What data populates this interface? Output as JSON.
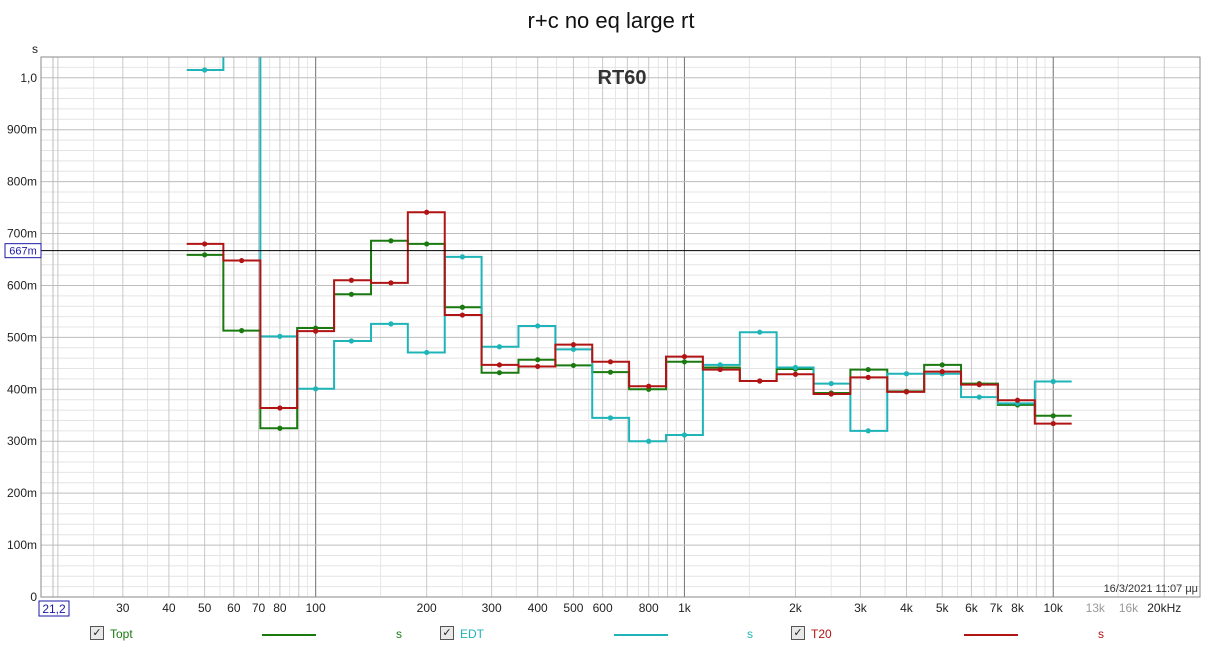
{
  "chart_data": {
    "type": "line",
    "title": "r+c no eq large rt",
    "annotation": "RT60",
    "timestamp": "16/3/2021 11:07 μμ",
    "y_unit": "s",
    "cursor_value": "667m",
    "cursor_x_value": "21,2",
    "ylim": [
      0,
      1.04
    ],
    "xlim": [
      18,
      25000
    ],
    "x_scale": "log",
    "grid": true,
    "y_ticks": [
      {
        "v": 0,
        "label": "0"
      },
      {
        "v": 0.1,
        "label": "100m"
      },
      {
        "v": 0.2,
        "label": "200m"
      },
      {
        "v": 0.3,
        "label": "300m"
      },
      {
        "v": 0.4,
        "label": "400m"
      },
      {
        "v": 0.5,
        "label": "500m"
      },
      {
        "v": 0.6,
        "label": "600m"
      },
      {
        "v": 0.7,
        "label": "700m"
      },
      {
        "v": 0.8,
        "label": "800m"
      },
      {
        "v": 0.9,
        "label": "900m"
      },
      {
        "v": 1.0,
        "label": "1,0"
      }
    ],
    "x_ticks": [
      {
        "v": 30,
        "label": "30",
        "dim": false
      },
      {
        "v": 40,
        "label": "40",
        "dim": false
      },
      {
        "v": 50,
        "label": "50",
        "dim": false
      },
      {
        "v": 60,
        "label": "60",
        "dim": false
      },
      {
        "v": 70,
        "label": "70",
        "dim": false
      },
      {
        "v": 80,
        "label": "80",
        "dim": false
      },
      {
        "v": 100,
        "label": "100",
        "dim": false
      },
      {
        "v": 200,
        "label": "200",
        "dim": false
      },
      {
        "v": 300,
        "label": "300",
        "dim": false
      },
      {
        "v": 400,
        "label": "400",
        "dim": false
      },
      {
        "v": 500,
        "label": "500",
        "dim": false
      },
      {
        "v": 600,
        "label": "600",
        "dim": false
      },
      {
        "v": 800,
        "label": "800",
        "dim": false
      },
      {
        "v": 1000,
        "label": "1k",
        "dim": false
      },
      {
        "v": 2000,
        "label": "2k",
        "dim": false
      },
      {
        "v": 3000,
        "label": "3k",
        "dim": false
      },
      {
        "v": 4000,
        "label": "4k",
        "dim": false
      },
      {
        "v": 5000,
        "label": "5k",
        "dim": false
      },
      {
        "v": 6000,
        "label": "6k",
        "dim": false
      },
      {
        "v": 7000,
        "label": "7k",
        "dim": false
      },
      {
        "v": 8000,
        "label": "8k",
        "dim": false
      },
      {
        "v": 10000,
        "label": "10k",
        "dim": false
      },
      {
        "v": 13000,
        "label": "13k",
        "dim": true
      },
      {
        "v": 16000,
        "label": "16k",
        "dim": true
      },
      {
        "v": 20000,
        "label": "20kHz",
        "dim": false
      }
    ],
    "bands": [
      50,
      63,
      80,
      100,
      125,
      160,
      200,
      250,
      315,
      400,
      500,
      630,
      800,
      1000,
      1250,
      1600,
      2000,
      2500,
      3150,
      4000,
      5000,
      6300,
      8000,
      10000
    ],
    "band_edges": [
      44.7,
      56.2,
      70.8,
      89.1,
      112.2,
      141.3,
      177.8,
      223.9,
      281.8,
      354.8,
      446.7,
      562.3,
      707.9,
      891.3,
      1122,
      1413,
      1778,
      2239,
      2818,
      3548,
      4467,
      5623,
      7079,
      8913,
      11220
    ],
    "series": [
      {
        "name": "Topt",
        "color": "#1a7a10",
        "values": [
          0.659,
          0.513,
          0.325,
          0.518,
          0.583,
          0.686,
          0.68,
          0.558,
          0.432,
          0.457,
          0.446,
          0.433,
          0.4,
          0.453,
          0.442,
          0.416,
          0.439,
          0.393,
          0.438,
          0.396,
          0.447,
          0.411,
          0.37,
          0.349
        ]
      },
      {
        "name": "EDT",
        "color": "#1fb4b8",
        "values": [
          1.015,
          null,
          0.502,
          0.401,
          0.493,
          0.526,
          0.471,
          0.655,
          0.482,
          0.522,
          0.477,
          0.345,
          0.3,
          0.312,
          0.447,
          0.51,
          0.442,
          0.411,
          0.32,
          0.43,
          0.43,
          0.385,
          0.373,
          0.415
        ]
      },
      {
        "name": "T20",
        "color": "#b01414",
        "values": [
          0.68,
          0.648,
          0.364,
          0.512,
          0.61,
          0.605,
          0.741,
          0.543,
          0.447,
          0.444,
          0.486,
          0.453,
          0.406,
          0.463,
          0.438,
          0.416,
          0.429,
          0.391,
          0.423,
          0.395,
          0.434,
          0.409,
          0.379,
          0.334
        ]
      }
    ],
    "legend_unit": "s"
  },
  "legend": [
    {
      "check": "✓",
      "label": "Topt",
      "color": "#1a7a10",
      "unit": "s"
    },
    {
      "check": "✓",
      "label": "EDT",
      "color": "#1fb4b8",
      "unit": "s"
    },
    {
      "check": "✓",
      "label": "T20",
      "color": "#b01414",
      "unit": "s"
    }
  ]
}
